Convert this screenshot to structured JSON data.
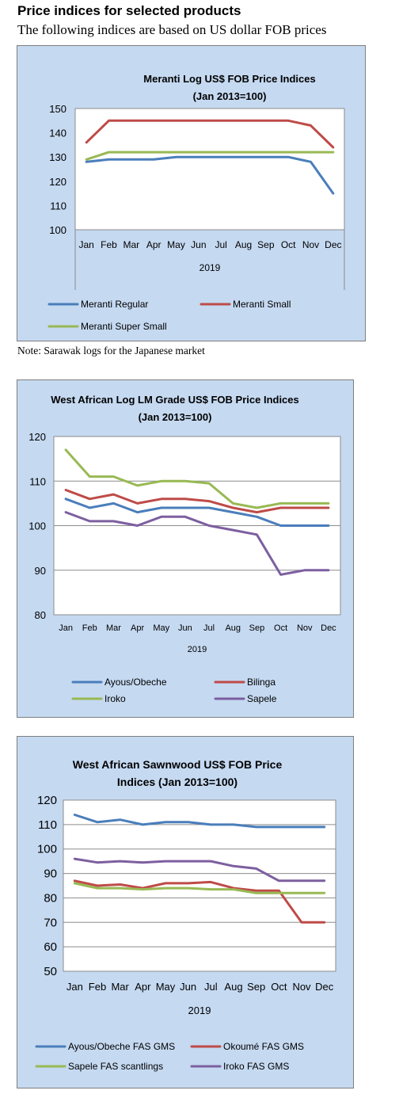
{
  "header": {
    "title": "Price indices for selected products",
    "subtitle": "The following indices are based on US dollar FOB prices"
  },
  "note": "Note: Sarawak logs for the Japanese market",
  "colors": {
    "blue": "#4a7ebb",
    "red": "#be4b48",
    "green": "#98b954",
    "purple": "#7d5fa0",
    "panel": "#c5d9f1"
  },
  "chart_data": [
    {
      "type": "line",
      "title": "Meranti Log US$ FOB Price Indices",
      "subtitle": "(Jan 2013=100)",
      "xlabel": "2019",
      "ylabel": "",
      "categories": [
        "Jan",
        "Feb",
        "Mar",
        "Apr",
        "May",
        "Jun",
        "Jul",
        "Aug",
        "Sep",
        "Oct",
        "Nov",
        "Dec"
      ],
      "ylim": [
        100,
        150
      ],
      "yticks": [
        "100",
        "110",
        "120",
        "130",
        "140",
        "150"
      ],
      "grid": false,
      "legend": "bottom",
      "series": [
        {
          "name": "Meranti Regular",
          "color": "#4a7ebb",
          "values": [
            128,
            129,
            129,
            129,
            130,
            130,
            130,
            130,
            130,
            130,
            128,
            115
          ]
        },
        {
          "name": "Meranti Small",
          "color": "#be4b48",
          "values": [
            136,
            145,
            145,
            145,
            145,
            145,
            145,
            145,
            145,
            145,
            143,
            134
          ]
        },
        {
          "name": "Meranti Super Small",
          "color": "#98b954",
          "values": [
            129,
            132,
            132,
            132,
            132,
            132,
            132,
            132,
            132,
            132,
            132,
            132
          ]
        }
      ]
    },
    {
      "type": "line",
      "title": "West African Log LM Grade US$ FOB Price Indices",
      "subtitle": "(Jan 2013=100)",
      "xlabel": "2019",
      "ylabel": "",
      "categories": [
        "Jan",
        "Feb",
        "Mar",
        "Apr",
        "May",
        "Jun",
        "Jul",
        "Aug",
        "Sep",
        "Oct",
        "Nov",
        "Dec"
      ],
      "ylim": [
        80,
        120
      ],
      "yticks": [
        "80",
        "90",
        "100",
        "110",
        "120"
      ],
      "grid": true,
      "legend": "bottom",
      "series": [
        {
          "name": "Ayous/Obeche",
          "color": "#4a7ebb",
          "values": [
            106,
            104,
            105,
            103,
            104,
            104,
            104,
            103,
            102,
            100,
            100,
            100
          ]
        },
        {
          "name": "Bilinga",
          "color": "#be4b48",
          "values": [
            108,
            106,
            107,
            105,
            106,
            106,
            105.5,
            104,
            103,
            104,
            104,
            104
          ]
        },
        {
          "name": "Iroko",
          "color": "#98b954",
          "values": [
            117,
            111,
            111,
            109,
            110,
            110,
            109.5,
            105,
            104,
            105,
            105,
            105
          ]
        },
        {
          "name": "Sapele",
          "color": "#7d5fa0",
          "values": [
            103,
            101,
            101,
            100,
            102,
            102,
            100,
            99,
            98,
            89,
            90,
            90
          ]
        }
      ]
    },
    {
      "type": "line",
      "title": "West African Sawnwood US$ FOB Price",
      "subtitle": "Indices (Jan 2013=100)",
      "xlabel": "2019",
      "ylabel": "",
      "categories": [
        "Jan",
        "Feb",
        "Mar",
        "Apr",
        "May",
        "Jun",
        "Jul",
        "Aug",
        "Sep",
        "Oct",
        "Nov",
        "Dec"
      ],
      "ylim": [
        50,
        120
      ],
      "yticks": [
        "50",
        "60",
        "70",
        "80",
        "90",
        "100",
        "110",
        "120"
      ],
      "grid": true,
      "legend": "bottom",
      "series": [
        {
          "name": "Ayous/Obeche  FAS GMS",
          "color": "#4a7ebb",
          "values": [
            114,
            111,
            112,
            110,
            111,
            111,
            110,
            110,
            109,
            109,
            109,
            109
          ]
        },
        {
          "name": "Okoumé  FAS GMS",
          "color": "#be4b48",
          "values": [
            87,
            85,
            85.5,
            84,
            86,
            86,
            86.5,
            84,
            83,
            83,
            70,
            70
          ]
        },
        {
          "name": "Sapele FAS scantlings",
          "color": "#98b954",
          "values": [
            86,
            84,
            84,
            83.5,
            84,
            84,
            83.5,
            83.5,
            82,
            82,
            82,
            82
          ]
        },
        {
          "name": "Iroko FAS GMS",
          "color": "#7d5fa0",
          "values": [
            96,
            94.5,
            95,
            94.5,
            95,
            95,
            95,
            93,
            92,
            87,
            87,
            87
          ]
        }
      ]
    }
  ]
}
